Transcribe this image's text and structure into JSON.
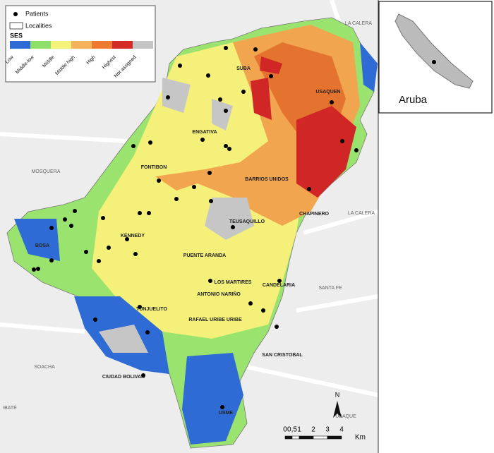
{
  "legend": {
    "patients": "Patients",
    "localities": "Localities",
    "ses_title": "SES",
    "ses_levels": [
      "Low",
      "Middle-low",
      "Middle",
      "Middle high",
      "High",
      "Highest",
      "Not assigned"
    ]
  },
  "localities": [
    "SUBA",
    "USAQUEN",
    "ENGATIVA",
    "FONTIBON",
    "BARRIOS UNIDOS",
    "CHAPINERO",
    "TEUSAQUILLO",
    "KENNEDY",
    "BOSA",
    "PUENTE ARANDA",
    "LOS MARTIRES",
    "CANDELARIA",
    "ANTONIO NARIÑO",
    "TUNJUELITO",
    "RAFAEL URIBE URIBE",
    "SAN CRISTOBAL",
    "CIUDAD BOLIVAR",
    "USME",
    "SANTA FE"
  ],
  "neighbors": [
    "MOSQUERA",
    "SOACHA",
    "LA CALERA",
    "LA CALERA",
    "UBAQUE",
    "IBATÉ"
  ],
  "inset": {
    "label": "Aruba"
  },
  "scale_bar": {
    "ticks": [
      "0",
      "0,5",
      "1",
      "2",
      "3",
      "4"
    ],
    "unit": "Km"
  },
  "north": "N"
}
